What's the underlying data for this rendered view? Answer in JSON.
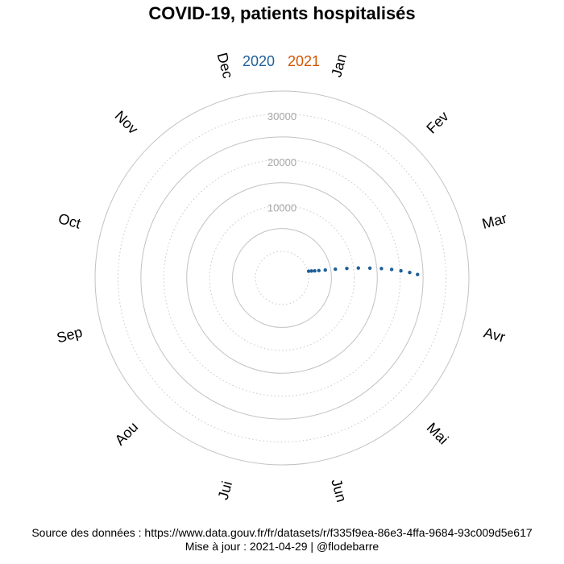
{
  "chart_data": {
    "type": "scatter",
    "projection": "polar",
    "title": "COVID-19, patients hospitalisés",
    "legend": {
      "placement": "top",
      "entries": [
        {
          "label": "2020",
          "color": "#1f5f99"
        },
        {
          "label": "2021",
          "color": "#d35400"
        }
      ]
    },
    "angular_axis": {
      "labels": [
        "Jan",
        "Fev",
        "Mar",
        "Avr",
        "Mai",
        "Jun",
        "Jui",
        "Aou",
        "Sep",
        "Oct",
        "Nov",
        "Dec"
      ]
    },
    "radial_axis": {
      "range": [
        0,
        35000
      ],
      "ticks": [
        10000,
        20000,
        30000
      ],
      "tick_labels": [
        "10000",
        "20000",
        "30000"
      ]
    },
    "grid": true,
    "series": [
      {
        "color": "#1f5f99",
        "marker_size": 2.2,
        "points": [
          {
            "date": "2020-03-18",
            "value": 200
          },
          {
            "date": "2020-03-19",
            "value": 800
          },
          {
            "date": "2020-03-20",
            "value": 1500
          },
          {
            "date": "2020-03-21",
            "value": 2400
          },
          {
            "date": "2020-03-22",
            "value": 3800
          },
          {
            "date": "2020-03-23",
            "value": 6000
          },
          {
            "date": "2020-03-24",
            "value": 8500
          },
          {
            "date": "2020-03-25",
            "value": 11000
          },
          {
            "date": "2020-03-26",
            "value": 13500
          },
          {
            "date": "2020-03-27",
            "value": 16000
          },
          {
            "date": "2020-03-28",
            "value": 18200
          },
          {
            "date": "2020-03-29",
            "value": 20200
          },
          {
            "date": "2020-03-30",
            "value": 22100
          },
          {
            "date": "2020-03-31",
            "value": 23800
          }
        ]
      }
    ],
    "caption": {
      "source": "Source des données : https://www.data.gouv.fr/fr/datasets/r/f335f9ea-86e3-4ffa-9684-93c009d5e617",
      "update": "Mise à jour : 2021-04-29 | @flodebarre"
    }
  }
}
